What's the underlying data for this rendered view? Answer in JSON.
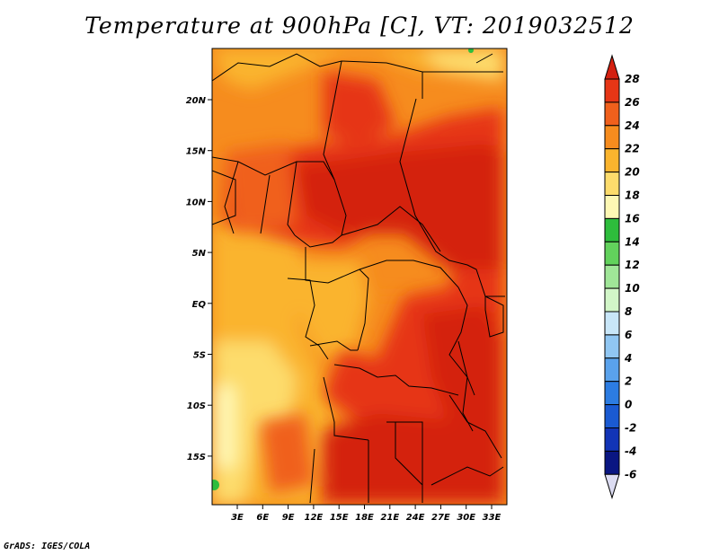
{
  "title": "Temperature at 900hPa [C], VT: 2019032512",
  "credit": "GrADS: IGES/COLA",
  "map": {
    "lon_labels": [
      "3E",
      "6E",
      "9E",
      "12E",
      "15E",
      "18E",
      "21E",
      "24E",
      "27E",
      "30E",
      "33E"
    ],
    "lat_labels": [
      "20N",
      "15N",
      "10N",
      "5N",
      "EQ",
      "5S",
      "10S",
      "15S"
    ]
  },
  "colorbar": {
    "levels": [
      "28",
      "26",
      "24",
      "22",
      "20",
      "18",
      "16",
      "14",
      "12",
      "10",
      "8",
      "6",
      "4",
      "2",
      "0",
      "-2",
      "-4",
      "-6"
    ],
    "colors": [
      "#d42010",
      "#e63616",
      "#f0601c",
      "#f68c1e",
      "#fab42e",
      "#fddc6c",
      "#fef8b4",
      "#2ebd3c",
      "#62d25c",
      "#a0e698",
      "#d2f6c8",
      "#c8e6f8",
      "#90c6f2",
      "#5aa2ec",
      "#2c7ce2",
      "#1a5ad2",
      "#1234b6",
      "#0a1682",
      "#dcdcf2"
    ],
    "top_color": "#d42010",
    "bottom_color": "#dcdcf2"
  }
}
